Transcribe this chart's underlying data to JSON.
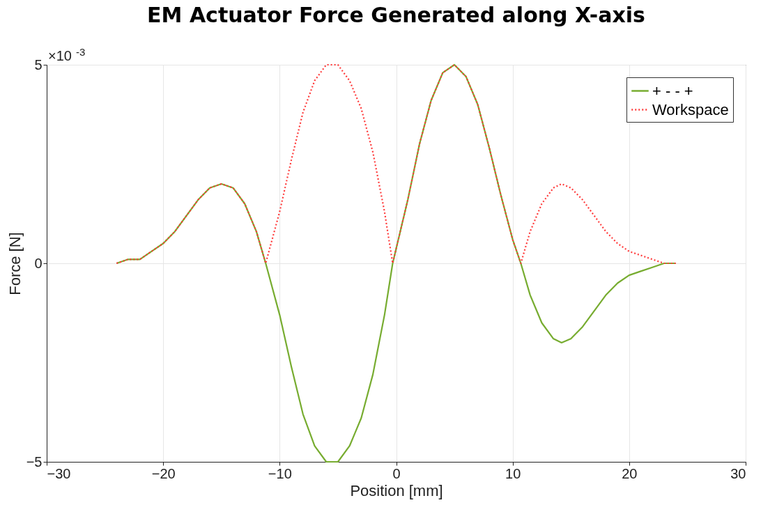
{
  "chart_data": {
    "type": "line",
    "title": "EM Actuator Force Generated along X-axis",
    "xlabel": "Position [mm]",
    "ylabel": "Force [N]",
    "x": [
      -24,
      -23,
      -22,
      -21,
      -20,
      -19,
      -18,
      -17,
      -16,
      -15,
      -14,
      -13,
      -12,
      -11.2,
      -10,
      -9,
      -8,
      -7,
      -6,
      -5.5,
      -5,
      -4,
      -3,
      -2,
      -1,
      -0.3,
      1,
      2,
      3,
      4,
      5,
      6,
      7,
      8,
      9,
      10,
      10.7,
      11.5,
      12.5,
      13.5,
      14.2,
      15,
      16,
      17,
      18,
      19,
      20,
      21,
      22,
      23,
      24
    ],
    "series": [
      {
        "name": "+ - - +",
        "color": "#77ac30",
        "line_style": "solid",
        "values": [
          0,
          0.1,
          0.1,
          0.3,
          0.5,
          0.8,
          1.2,
          1.6,
          1.9,
          2,
          1.9,
          1.5,
          0.8,
          0,
          -1.3,
          -2.6,
          -3.8,
          -4.6,
          -5,
          -5,
          -5,
          -4.6,
          -3.9,
          -2.8,
          -1.3,
          0,
          1.6,
          3,
          4.1,
          4.8,
          5,
          4.7,
          4,
          2.9,
          1.7,
          0.6,
          0,
          -0.8,
          -1.5,
          -1.9,
          -2,
          -1.9,
          -1.6,
          -1.2,
          -0.8,
          -0.5,
          -0.3,
          -0.2,
          -0.1,
          0,
          0
        ]
      },
      {
        "name": "Workspace",
        "color": "#ff3b3b",
        "line_style": "dotted",
        "values": [
          0,
          0.1,
          0.1,
          0.3,
          0.5,
          0.8,
          1.2,
          1.6,
          1.9,
          2,
          1.9,
          1.5,
          0.8,
          0,
          1.3,
          2.6,
          3.8,
          4.6,
          5,
          5,
          5,
          4.6,
          3.9,
          2.8,
          1.3,
          0,
          1.6,
          3,
          4.1,
          4.8,
          5,
          4.7,
          4,
          2.9,
          1.7,
          0.6,
          0,
          0.8,
          1.5,
          1.9,
          2,
          1.9,
          1.6,
          1.2,
          0.8,
          0.5,
          0.3,
          0.2,
          0.1,
          0,
          0
        ]
      }
    ],
    "xlim": [
      -30,
      30
    ],
    "xticks": [
      -30,
      -20,
      -10,
      0,
      10,
      20,
      30
    ],
    "ylim": [
      -5,
      5
    ],
    "yticks": [
      -5,
      0,
      5
    ],
    "annotations": [
      "×10$^{-3}$"
    ],
    "grid": true,
    "legend": "top right",
    "marker": "none"
  }
}
